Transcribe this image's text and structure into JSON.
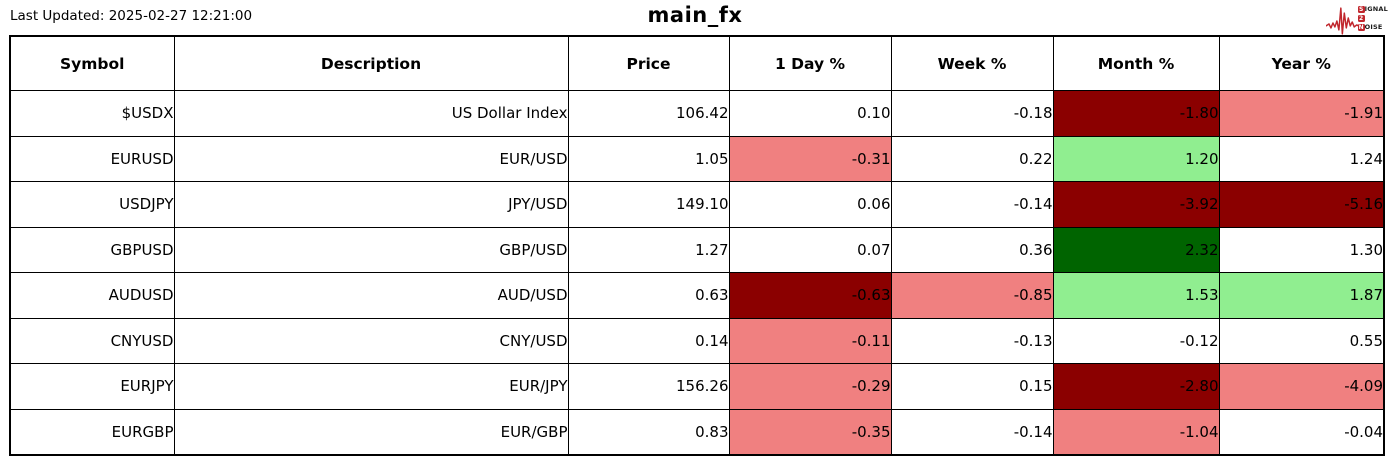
{
  "meta": {
    "last_updated": "Last Updated: 2025-02-27 12:21:00",
    "title": "main_fx"
  },
  "logo": {
    "s": "S",
    "ignal": "IGNAL",
    "two": "2",
    "n": "N",
    "oise": "OISE",
    "red": "#c1272d"
  },
  "colors": {
    "white": "#ffffff",
    "darkred": "#8b0000",
    "lightred": "#f08080",
    "lightgreen": "#90ee90",
    "darkgreen": "#006400"
  },
  "table": {
    "columns": [
      "Symbol",
      "Description",
      "Price",
      "1 Day %",
      "Week %",
      "Month %",
      "Year %"
    ],
    "rows": [
      {
        "symbol": "$USDX",
        "description": "US Dollar Index",
        "price": "106.42",
        "changes": [
          {
            "value": "0.10",
            "bg": "white"
          },
          {
            "value": "-0.18",
            "bg": "white"
          },
          {
            "value": "-1.80",
            "bg": "darkred"
          },
          {
            "value": "-1.91",
            "bg": "lightred"
          }
        ]
      },
      {
        "symbol": "EURUSD",
        "description": "EUR/USD",
        "price": "1.05",
        "changes": [
          {
            "value": "-0.31",
            "bg": "lightred"
          },
          {
            "value": "0.22",
            "bg": "white"
          },
          {
            "value": "1.20",
            "bg": "lightgreen"
          },
          {
            "value": "1.24",
            "bg": "white"
          }
        ]
      },
      {
        "symbol": "USDJPY",
        "description": "JPY/USD",
        "price": "149.10",
        "changes": [
          {
            "value": "0.06",
            "bg": "white"
          },
          {
            "value": "-0.14",
            "bg": "white"
          },
          {
            "value": "-3.92",
            "bg": "darkred"
          },
          {
            "value": "-5.16",
            "bg": "darkred"
          }
        ]
      },
      {
        "symbol": "GBPUSD",
        "description": "GBP/USD",
        "price": "1.27",
        "changes": [
          {
            "value": "0.07",
            "bg": "white"
          },
          {
            "value": "0.36",
            "bg": "white"
          },
          {
            "value": "2.32",
            "bg": "darkgreen"
          },
          {
            "value": "1.30",
            "bg": "white"
          }
        ]
      },
      {
        "symbol": "AUDUSD",
        "description": "AUD/USD",
        "price": "0.63",
        "changes": [
          {
            "value": "-0.63",
            "bg": "darkred"
          },
          {
            "value": "-0.85",
            "bg": "lightred"
          },
          {
            "value": "1.53",
            "bg": "lightgreen"
          },
          {
            "value": "1.87",
            "bg": "lightgreen"
          }
        ]
      },
      {
        "symbol": "CNYUSD",
        "description": "CNY/USD",
        "price": "0.14",
        "changes": [
          {
            "value": "-0.11",
            "bg": "lightred"
          },
          {
            "value": "-0.13",
            "bg": "white"
          },
          {
            "value": "-0.12",
            "bg": "white"
          },
          {
            "value": "0.55",
            "bg": "white"
          }
        ]
      },
      {
        "symbol": "EURJPY",
        "description": "EUR/JPY",
        "price": "156.26",
        "changes": [
          {
            "value": "-0.29",
            "bg": "lightred"
          },
          {
            "value": "0.15",
            "bg": "white"
          },
          {
            "value": "-2.80",
            "bg": "darkred"
          },
          {
            "value": "-4.09",
            "bg": "lightred"
          }
        ]
      },
      {
        "symbol": "EURGBP",
        "description": "EUR/GBP",
        "price": "0.83",
        "changes": [
          {
            "value": "-0.35",
            "bg": "lightred"
          },
          {
            "value": "-0.14",
            "bg": "white"
          },
          {
            "value": "-1.04",
            "bg": "lightred"
          },
          {
            "value": "-0.04",
            "bg": "white"
          }
        ]
      }
    ]
  },
  "chart_data": {
    "type": "table",
    "title": "main_fx",
    "last_updated": "2025-02-27 12:21:00",
    "columns": [
      "Symbol",
      "Description",
      "Price",
      "1 Day %",
      "Week %",
      "Month %",
      "Year %"
    ],
    "rows": [
      [
        "$USDX",
        "US Dollar Index",
        106.42,
        0.1,
        -0.18,
        -1.8,
        -1.91
      ],
      [
        "EURUSD",
        "EUR/USD",
        1.05,
        -0.31,
        0.22,
        1.2,
        1.24
      ],
      [
        "USDJPY",
        "JPY/USD",
        149.1,
        0.06,
        -0.14,
        -3.92,
        -5.16
      ],
      [
        "GBPUSD",
        "GBP/USD",
        1.27,
        0.07,
        0.36,
        2.32,
        1.3
      ],
      [
        "AUDUSD",
        "AUD/USD",
        0.63,
        -0.63,
        -0.85,
        1.53,
        1.87
      ],
      [
        "CNYUSD",
        "CNY/USD",
        0.14,
        -0.11,
        -0.13,
        -0.12,
        0.55
      ],
      [
        "EURJPY",
        "EUR/JPY",
        156.26,
        -0.29,
        0.15,
        -2.8,
        -4.09
      ],
      [
        "EURGBP",
        "EUR/GBP",
        0.83,
        -0.35,
        -0.14,
        -1.04,
        -0.04
      ]
    ],
    "legend": "cell background encodes magnitude of % change: darkred #8b0000 (strong loss), lightcoral #f08080 (loss), lightgreen #90ee90 (gain), darkgreen #006400 (strong gain), white (neutral)"
  }
}
